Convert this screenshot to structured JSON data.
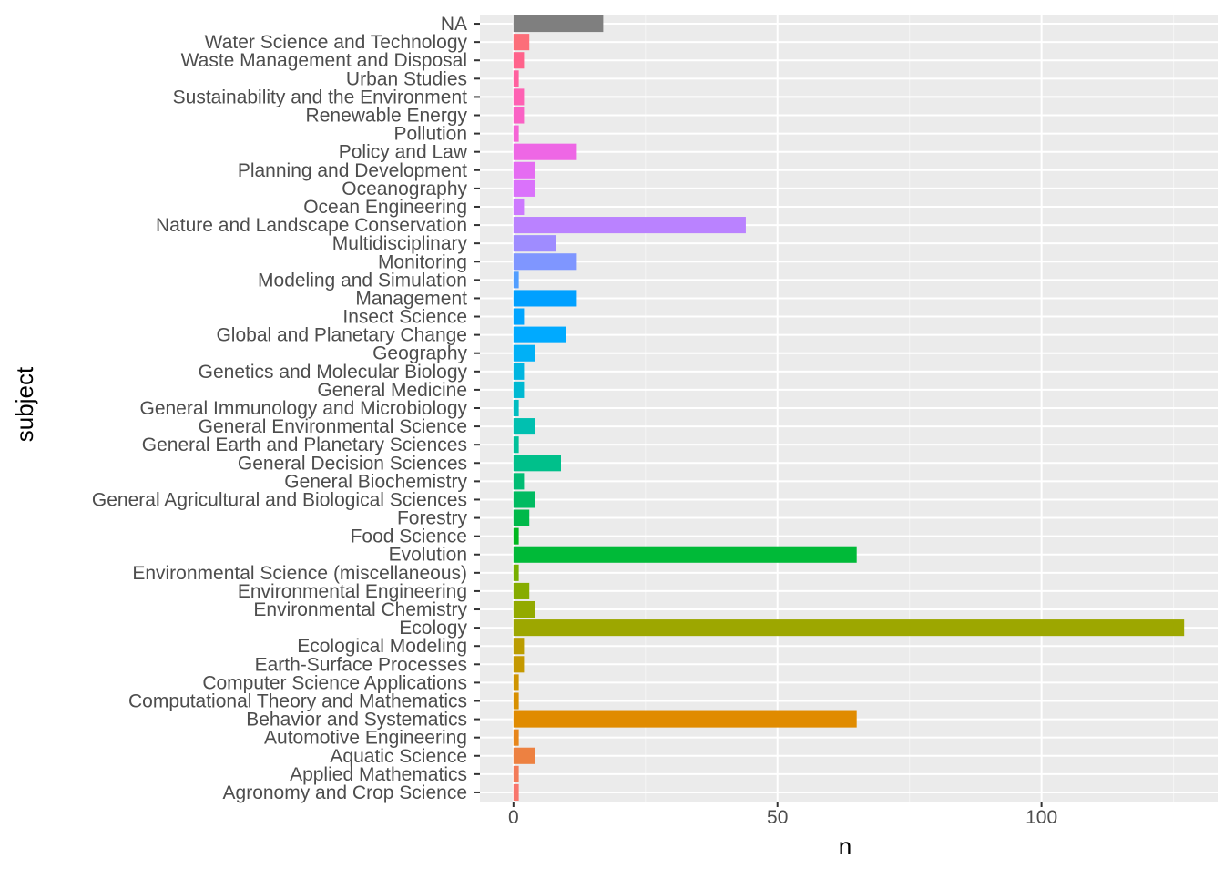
{
  "chart_data": {
    "type": "bar",
    "orientation": "horizontal",
    "xlabel": "n",
    "ylabel": "subject",
    "xlim": [
      -6.35,
      133.35
    ],
    "x_ticks": [
      0,
      50,
      100
    ],
    "grid": true,
    "legend": "none",
    "categories": [
      "Agronomy and Crop Science",
      "Applied Mathematics",
      "Aquatic Science",
      "Automotive Engineering",
      "Behavior and Systematics",
      "Computational Theory and Mathematics",
      "Computer Science Applications",
      "Earth-Surface Processes",
      "Ecological Modeling",
      "Ecology",
      "Environmental Chemistry",
      "Environmental Engineering",
      "Environmental Science (miscellaneous)",
      "Evolution",
      "Food Science",
      "Forestry",
      "General Agricultural and Biological Sciences",
      "General Biochemistry",
      "General Decision Sciences",
      "General Earth and Planetary Sciences",
      "General Environmental Science",
      "General Immunology and Microbiology",
      "General Medicine",
      "Genetics and Molecular Biology",
      "Geography",
      "Global and Planetary Change",
      "Insect Science",
      "Management",
      "Modeling and Simulation",
      "Monitoring",
      "Multidisciplinary",
      "Nature and Landscape Conservation",
      "Ocean Engineering",
      "Oceanography",
      "Planning and Development",
      "Policy and Law",
      "Pollution",
      "Renewable Energy",
      "Sustainability and the Environment",
      "Urban Studies",
      "Waste Management and Disposal",
      "Water Science and Technology",
      "NA"
    ],
    "values": [
      1,
      1,
      4,
      1,
      65,
      1,
      1,
      2,
      2,
      127,
      4,
      3,
      1,
      65,
      1,
      3,
      4,
      2,
      9,
      1,
      4,
      1,
      2,
      2,
      4,
      10,
      2,
      12,
      1,
      12,
      8,
      44,
      2,
      4,
      4,
      12,
      1,
      2,
      2,
      1,
      2,
      3,
      17
    ],
    "colors": [
      "#F8766D",
      "#F37B59",
      "#ED8141",
      "#E7861B",
      "#E08B00",
      "#D89000",
      "#CF9400",
      "#C59900",
      "#BB9D00",
      "#9DA700",
      "#93AA00",
      "#86AC00",
      "#77AF00",
      "#00BA38",
      "#00B81F",
      "#00B94A",
      "#00BB61",
      "#00BC74",
      "#00C08B",
      "#00C19A",
      "#00C0B0",
      "#00BDC1",
      "#00B9D2",
      "#00B5E0",
      "#00B0F6",
      "#00AAFF",
      "#00A5FF",
      "#00A0FF",
      "#529EFF",
      "#7F96FF",
      "#9F8CFF",
      "#BA82FF",
      "#CD79FF",
      "#DA72FB",
      "#E56CF2",
      "#EE67E5",
      "#F564D6",
      "#FA62C5",
      "#FE61B3",
      "#FF619F",
      "#FF638B",
      "#FC6E79",
      "#7F7F7F"
    ]
  }
}
